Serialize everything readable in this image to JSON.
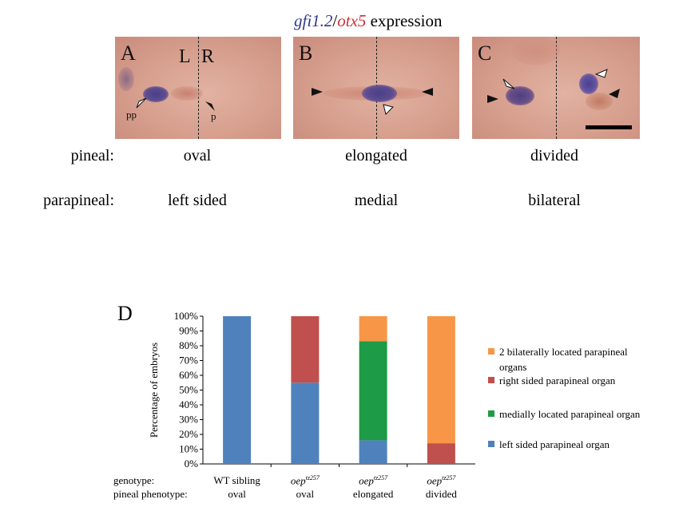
{
  "header": {
    "title_part1": "gfi1.2",
    "title_sep": "/",
    "title_part2": "otx5",
    "title_rest": " expression",
    "color_gene1": "#2f3a8a",
    "color_gene2": "#c8343a"
  },
  "panels": [
    {
      "letter": "A",
      "left_label": "L",
      "right_label": "R",
      "label_pp": "pp",
      "label_p": "p"
    },
    {
      "letter": "B"
    },
    {
      "letter": "C"
    }
  ],
  "rows": {
    "pineal_label": "pineal:",
    "pineal_values": [
      "oval",
      "elongated",
      "divided"
    ],
    "parapineal_label": "parapineal:",
    "parapineal_values": [
      "left sided",
      "medial",
      "bilateral"
    ]
  },
  "chart_data": {
    "type": "bar",
    "stacked": true,
    "panel_letter": "D",
    "ylabel": "Percentage of embryos",
    "ylim": [
      0,
      100
    ],
    "yticks": [
      "0%",
      "10%",
      "20%",
      "30%",
      "40%",
      "50%",
      "60%",
      "70%",
      "80%",
      "90%",
      "100%"
    ],
    "row_labels": [
      "genotype:",
      "pineal phenotype:"
    ],
    "categories": [
      {
        "genotype": "WT sibling",
        "genotype_sup": "",
        "phenotype": "oval"
      },
      {
        "genotype": "oep",
        "genotype_sup": "tz257",
        "phenotype": "oval"
      },
      {
        "genotype": "oep",
        "genotype_sup": "tz257",
        "phenotype": "elongated"
      },
      {
        "genotype": "oep",
        "genotype_sup": "tz257",
        "phenotype": "divided"
      }
    ],
    "series": [
      {
        "name": "left sided parapineal organ",
        "color": "#4f81bd",
        "values": [
          100,
          55,
          16,
          0
        ]
      },
      {
        "name": "medially located parapineal organ",
        "color": "#1e9b46",
        "values": [
          0,
          0,
          67,
          0
        ]
      },
      {
        "name": "right sided parapineal organ",
        "color": "#c0504d",
        "values": [
          0,
          45,
          0,
          14
        ]
      },
      {
        "name": "2 bilaterally located parapineal organs",
        "color": "#f79646",
        "values": [
          0,
          0,
          17,
          86
        ]
      }
    ],
    "legend_order": [
      3,
      2,
      1,
      0
    ],
    "grid": false,
    "legend_position": "right"
  }
}
